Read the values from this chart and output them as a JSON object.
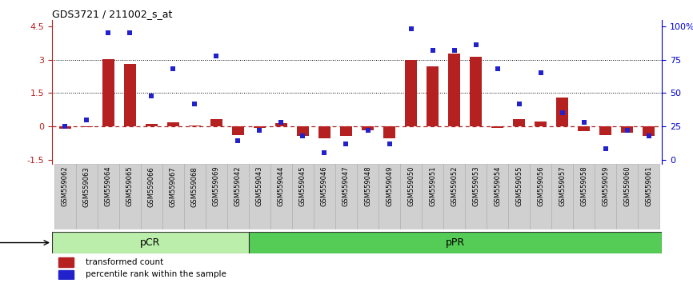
{
  "title": "GDS3721 / 211002_s_at",
  "samples": [
    "GSM559062",
    "GSM559063",
    "GSM559064",
    "GSM559065",
    "GSM559066",
    "GSM559067",
    "GSM559068",
    "GSM559069",
    "GSM559042",
    "GSM559043",
    "GSM559044",
    "GSM559045",
    "GSM559046",
    "GSM559047",
    "GSM559048",
    "GSM559049",
    "GSM559050",
    "GSM559051",
    "GSM559052",
    "GSM559053",
    "GSM559054",
    "GSM559055",
    "GSM559056",
    "GSM559057",
    "GSM559058",
    "GSM559059",
    "GSM559060",
    "GSM559061"
  ],
  "bar_values": [
    -0.12,
    -0.05,
    3.02,
    2.82,
    0.12,
    0.18,
    0.05,
    0.32,
    -0.38,
    -0.08,
    0.16,
    -0.42,
    -0.52,
    -0.42,
    -0.18,
    -0.55,
    3.0,
    2.72,
    3.28,
    3.12,
    -0.08,
    0.32,
    0.22,
    1.3,
    -0.22,
    -0.38,
    -0.28,
    -0.42
  ],
  "dot_values": [
    25,
    30,
    95,
    95,
    48,
    68,
    42,
    78,
    14,
    22,
    28,
    18,
    5,
    12,
    22,
    12,
    98,
    82,
    82,
    86,
    68,
    42,
    65,
    35,
    28,
    8,
    22,
    18
  ],
  "pCR_count": 9,
  "pPR_count": 19,
  "bar_color": "#b52020",
  "dot_color": "#2222cc",
  "bg_color": "#ffffff",
  "right_axis_color": "#0000cc",
  "ylim": [
    -1.7,
    4.8
  ],
  "yticks_left": [
    -1.5,
    0.0,
    1.5,
    3.0,
    4.5
  ],
  "ytick_labels_left": [
    "-1.5",
    "0",
    "1.5",
    "3",
    "4.5"
  ],
  "ytick_labels_right": [
    "0",
    "25",
    "50",
    "75",
    "100%"
  ],
  "hline_y": [
    1.5,
    3.0
  ],
  "zero_line_color": "#aa2222",
  "pCR_color": "#bbeeaa",
  "pPR_color": "#55cc55",
  "bar_width": 0.55,
  "xlabel_gray": "#cccccc",
  "separator_color": "#222222"
}
